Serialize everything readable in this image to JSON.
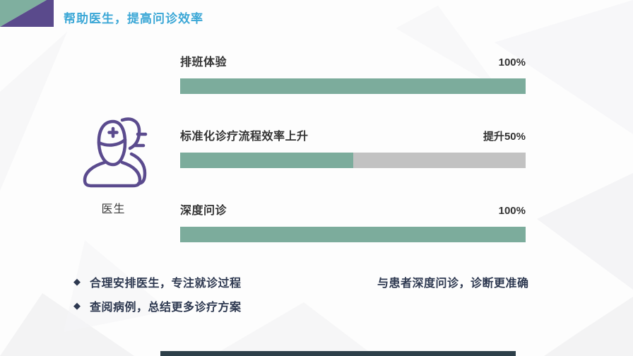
{
  "slide": {
    "title": "帮助医生，提高问诊效率"
  },
  "figure": {
    "icon": "doctor-icon",
    "label": "医生"
  },
  "chart_data": {
    "type": "bar",
    "orientation": "horizontal",
    "categories": [
      "排班体验",
      "标准化诊疗流程效率上升",
      "深度问诊"
    ],
    "values": [
      100,
      50,
      100
    ],
    "value_labels": [
      "100%",
      "提升50%",
      "100%"
    ],
    "max": 100,
    "bar_color": "#7CAC9C",
    "track_color": "#C2C2C2",
    "title": "",
    "xlabel": "",
    "ylabel": ""
  },
  "notes": {
    "bullet_marker": "◆",
    "bullets": [
      "合理安排医生，专注就诊过程",
      "查阅病例，总结更多诊疗方案"
    ],
    "right_note": "与患者深度问诊，诊断更准确"
  },
  "colors": {
    "title_blue": "#3BA7D6",
    "corner_teal": "#7FAF9F",
    "corner_purple": "#5A4A8C",
    "icon_purple": "#5B4B8E",
    "dark_text": "#333333",
    "navy_text": "#2D3850",
    "footer_dark": "#2D3F49"
  }
}
